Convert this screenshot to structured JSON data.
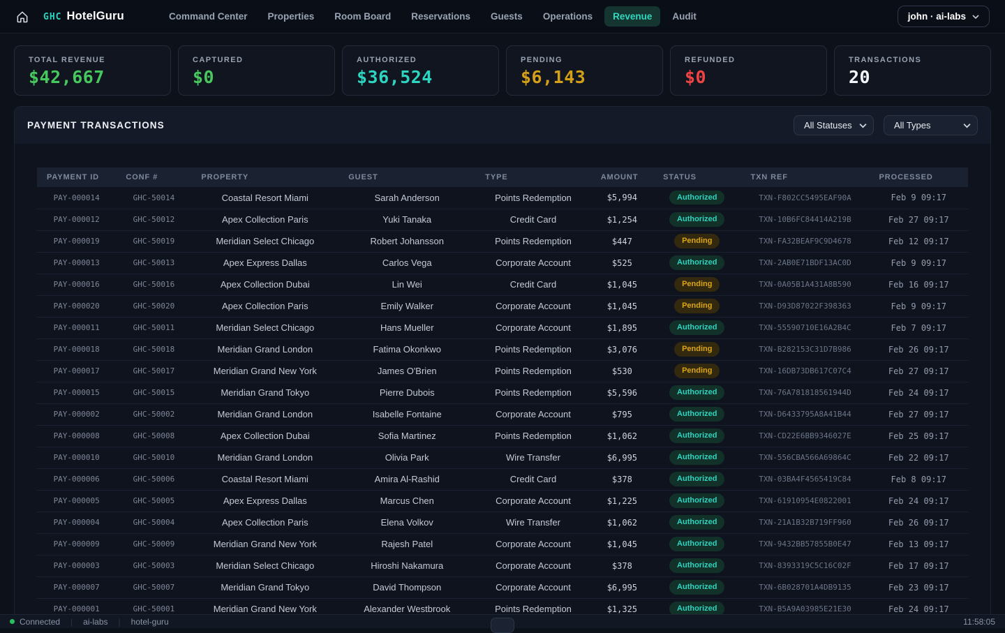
{
  "nav": {
    "brand": {
      "prefix": "GHC",
      "name": "HotelGuru"
    },
    "items": [
      {
        "label": "Command Center",
        "active": false
      },
      {
        "label": "Properties",
        "active": false
      },
      {
        "label": "Room Board",
        "active": false
      },
      {
        "label": "Reservations",
        "active": false
      },
      {
        "label": "Guests",
        "active": false
      },
      {
        "label": "Operations",
        "active": false
      },
      {
        "label": "Revenue",
        "active": true
      },
      {
        "label": "Audit",
        "active": false
      }
    ],
    "user_menu_label": "john · ai-labs"
  },
  "stats": [
    {
      "label": "TOTAL REVENUE",
      "value": "$42,667",
      "color": "#46c85e"
    },
    {
      "label": "CAPTURED",
      "value": "$0",
      "color": "#46c85e"
    },
    {
      "label": "AUTHORIZED",
      "value": "$36,524",
      "color": "#2dd4bf"
    },
    {
      "label": "PENDING",
      "value": "$6,143",
      "color": "#d4a017"
    },
    {
      "label": "REFUNDED",
      "value": "$0",
      "color": "#ef4444"
    },
    {
      "label": "TRANSACTIONS",
      "value": "20",
      "color": "#f2f5f9"
    }
  ],
  "panel": {
    "title": "PAYMENT TRANSACTIONS",
    "filters": [
      {
        "value": "All Statuses"
      },
      {
        "value": "All Types"
      }
    ]
  },
  "table": {
    "columns": [
      "PAYMENT ID",
      "CONF #",
      "PROPERTY",
      "GUEST",
      "TYPE",
      "AMOUNT",
      "STATUS",
      "TXN REF",
      "PROCESSED"
    ],
    "rows": [
      [
        "PAY-000014",
        "GHC-50014",
        "Coastal Resort Miami",
        "Sarah Anderson",
        "Points Redemption",
        "$5,994",
        "Authorized",
        "TXN-F802CC5495EAF90A",
        "Feb 9 09:17"
      ],
      [
        "PAY-000012",
        "GHC-50012",
        "Apex Collection Paris",
        "Yuki Tanaka",
        "Credit Card",
        "$1,254",
        "Authorized",
        "TXN-10B6FC84414A219B",
        "Feb 27 09:17"
      ],
      [
        "PAY-000019",
        "GHC-50019",
        "Meridian Select Chicago",
        "Robert Johansson",
        "Points Redemption",
        "$447",
        "Pending",
        "TXN-FA32BEAF9C9D4678",
        "Feb 12 09:17"
      ],
      [
        "PAY-000013",
        "GHC-50013",
        "Apex Express Dallas",
        "Carlos Vega",
        "Corporate Account",
        "$525",
        "Authorized",
        "TXN-2AB0E71BDF13AC0D",
        "Feb 9 09:17"
      ],
      [
        "PAY-000016",
        "GHC-50016",
        "Apex Collection Dubai",
        "Lin Wei",
        "Credit Card",
        "$1,045",
        "Pending",
        "TXN-0A05B1A431A8B590",
        "Feb 16 09:17"
      ],
      [
        "PAY-000020",
        "GHC-50020",
        "Apex Collection Paris",
        "Emily Walker",
        "Corporate Account",
        "$1,045",
        "Pending",
        "TXN-D93D87022F398363",
        "Feb 9 09:17"
      ],
      [
        "PAY-000011",
        "GHC-50011",
        "Meridian Select Chicago",
        "Hans Mueller",
        "Corporate Account",
        "$1,895",
        "Authorized",
        "TXN-55590710E16A2B4C",
        "Feb 7 09:17"
      ],
      [
        "PAY-000018",
        "GHC-50018",
        "Meridian Grand London",
        "Fatima Okonkwo",
        "Points Redemption",
        "$3,076",
        "Pending",
        "TXN-B282153C31D7B986",
        "Feb 26 09:17"
      ],
      [
        "PAY-000017",
        "GHC-50017",
        "Meridian Grand New York",
        "James O'Brien",
        "Points Redemption",
        "$530",
        "Pending",
        "TXN-16DB73DB617C07C4",
        "Feb 27 09:17"
      ],
      [
        "PAY-000015",
        "GHC-50015",
        "Meridian Grand Tokyo",
        "Pierre Dubois",
        "Points Redemption",
        "$5,596",
        "Authorized",
        "TXN-76A781818561944D",
        "Feb 24 09:17"
      ],
      [
        "PAY-000002",
        "GHC-50002",
        "Meridian Grand London",
        "Isabelle Fontaine",
        "Corporate Account",
        "$795",
        "Authorized",
        "TXN-D6433795A8A41B44",
        "Feb 27 09:17"
      ],
      [
        "PAY-000008",
        "GHC-50008",
        "Apex Collection Dubai",
        "Sofia Martinez",
        "Points Redemption",
        "$1,062",
        "Authorized",
        "TXN-CD22E6BB9346027E",
        "Feb 25 09:17"
      ],
      [
        "PAY-000010",
        "GHC-50010",
        "Meridian Grand London",
        "Olivia Park",
        "Wire Transfer",
        "$6,995",
        "Authorized",
        "TXN-556CBA566A69864C",
        "Feb 22 09:17"
      ],
      [
        "PAY-000006",
        "GHC-50006",
        "Coastal Resort Miami",
        "Amira Al-Rashid",
        "Credit Card",
        "$378",
        "Authorized",
        "TXN-03BA4F4565419C84",
        "Feb 8 09:17"
      ],
      [
        "PAY-000005",
        "GHC-50005",
        "Apex Express Dallas",
        "Marcus Chen",
        "Corporate Account",
        "$1,225",
        "Authorized",
        "TXN-61910954E0822001",
        "Feb 24 09:17"
      ],
      [
        "PAY-000004",
        "GHC-50004",
        "Apex Collection Paris",
        "Elena Volkov",
        "Wire Transfer",
        "$1,062",
        "Authorized",
        "TXN-21A1B32B719FF960",
        "Feb 26 09:17"
      ],
      [
        "PAY-000009",
        "GHC-50009",
        "Meridian Grand New York",
        "Rajesh Patel",
        "Corporate Account",
        "$1,045",
        "Authorized",
        "TXN-9432BB57855B0E47",
        "Feb 13 09:17"
      ],
      [
        "PAY-000003",
        "GHC-50003",
        "Meridian Select Chicago",
        "Hiroshi Nakamura",
        "Corporate Account",
        "$378",
        "Authorized",
        "TXN-8393319C5C16C02F",
        "Feb 17 09:17"
      ],
      [
        "PAY-000007",
        "GHC-50007",
        "Meridian Grand Tokyo",
        "David Thompson",
        "Corporate Account",
        "$6,995",
        "Authorized",
        "TXN-6B028701A4DB9135",
        "Feb 23 09:17"
      ],
      [
        "PAY-000001",
        "GHC-50001",
        "Meridian Grand New York",
        "Alexander Westbrook",
        "Points Redemption",
        "$1,325",
        "Authorized",
        "TXN-B5A9A03985E21E30",
        "Feb 24 09:17"
      ]
    ],
    "status_colors": {
      "authorized": "#2dd4bf",
      "pending": "#dca613"
    }
  },
  "statusbar": {
    "connection": "Connected",
    "org": "ai-labs",
    "app": "hotel-guru",
    "time": "11:58:05"
  }
}
